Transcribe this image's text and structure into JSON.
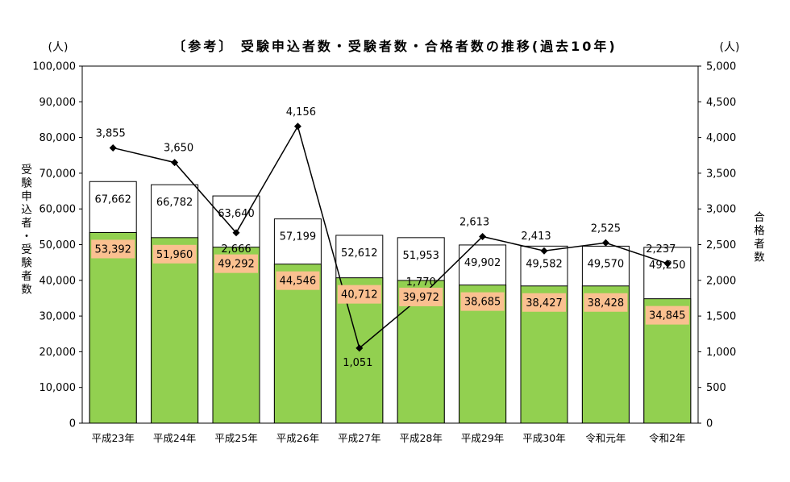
{
  "chart_data": {
    "type": "bar+line",
    "title": "〔参考〕 受験申込者数・受験者数・合格者数の推移(過去10年)",
    "left_unit": "(人)",
    "right_unit": "(人)",
    "left_axis_title": "受験申込者・受験者数",
    "right_axis_title": "合格者数",
    "left_ylim": [
      0,
      100000
    ],
    "left_ticks": [
      "0",
      "10,000",
      "20,000",
      "30,000",
      "40,000",
      "50,000",
      "60,000",
      "70,000",
      "80,000",
      "90,000",
      "100,000"
    ],
    "right_ylim": [
      0,
      5000
    ],
    "right_ticks": [
      "0",
      "500",
      "1,000",
      "1,500",
      "2,000",
      "2,500",
      "3,000",
      "3,500",
      "4,000",
      "4,500",
      "5,000"
    ],
    "categories": [
      "平成23年",
      "平成24年",
      "平成25年",
      "平成26年",
      "平成27年",
      "平成28年",
      "平成29年",
      "平成30年",
      "令和元年",
      "令和2年"
    ],
    "series": [
      {
        "name": "受験申込者数",
        "kind": "bar-outline",
        "axis": "left",
        "values": [
          67662,
          66782,
          63640,
          57199,
          52612,
          51953,
          49902,
          49582,
          49570,
          49250
        ],
        "labels": [
          "67,662",
          "66,782",
          "63,640",
          "57,199",
          "52,612",
          "51,953",
          "49,902",
          "49,582",
          "49,570",
          "49,250"
        ]
      },
      {
        "name": "受験者数",
        "kind": "bar-filled",
        "axis": "left",
        "values": [
          53392,
          51960,
          49292,
          44546,
          40712,
          39972,
          38685,
          38427,
          38428,
          34845
        ],
        "labels": [
          "53,392",
          "51,960",
          "49,292",
          "44,546",
          "40,712",
          "39,972",
          "38,685",
          "38,427",
          "38,428",
          "34,845"
        ]
      },
      {
        "name": "合格者数",
        "kind": "line",
        "axis": "right",
        "values": [
          3855,
          3650,
          2666,
          4156,
          1051,
          1770,
          2613,
          2413,
          2525,
          2237
        ],
        "labels": [
          "3,855",
          "3,650",
          "2,666",
          "4,156",
          "1,051",
          "1,770",
          "2,613",
          "2,413",
          "2,525",
          "2,237"
        ]
      }
    ],
    "colors": {
      "exam_bar": "#92D050",
      "exam_label_bg": "#FAC090",
      "applicant_bar": "#FFFFFF",
      "line": "#000000"
    }
  }
}
